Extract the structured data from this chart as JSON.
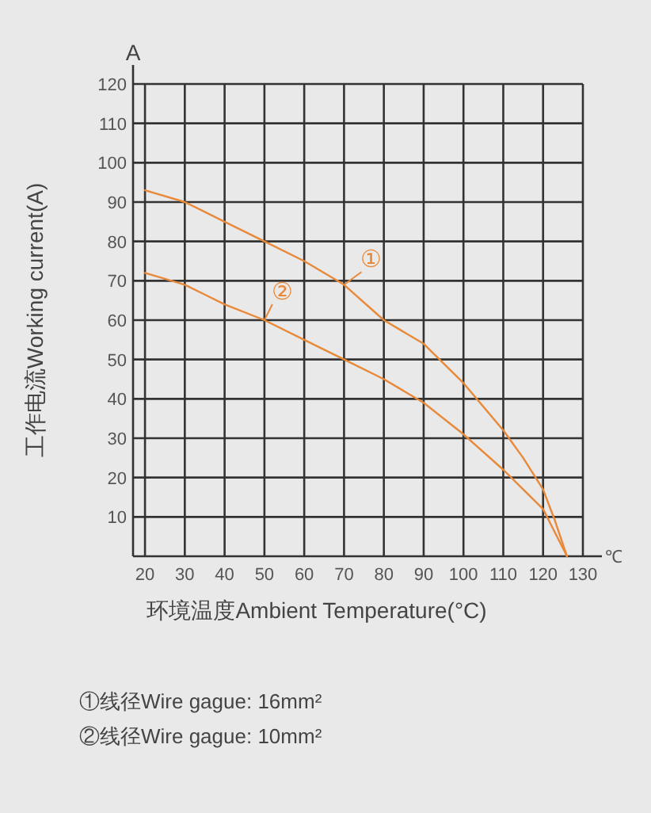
{
  "chart_data": {
    "type": "line",
    "xlabel": "环境温度Ambient Temperature(°C)",
    "ylabel": "工作电流Working current(A)",
    "xlim": [
      17,
      130
    ],
    "xticks": [
      20,
      30,
      40,
      50,
      60,
      70,
      80,
      90,
      100,
      110,
      120,
      130
    ],
    "ylim": [
      0,
      120
    ],
    "yticks": [
      10,
      20,
      30,
      40,
      50,
      60,
      70,
      80,
      90,
      100,
      110,
      120
    ],
    "grid": true,
    "marker": "none",
    "line_style": "solid",
    "series": [
      {
        "name": "①",
        "color": "#e8893a",
        "x": [
          20,
          30,
          40,
          50,
          60,
          70,
          80,
          90,
          100,
          110,
          115,
          120,
          123,
          125,
          126
        ],
        "values": [
          93,
          90,
          85,
          80,
          75,
          69,
          60,
          54,
          44,
          32,
          25,
          17,
          9,
          3,
          0
        ]
      },
      {
        "name": "②",
        "color": "#e8893a",
        "x": [
          20,
          30,
          40,
          50,
          60,
          70,
          80,
          90,
          100,
          110,
          115,
          120,
          123,
          125,
          126
        ],
        "values": [
          72,
          69,
          64,
          60,
          55,
          50,
          45,
          39,
          31,
          22,
          17,
          12,
          6,
          2,
          0
        ]
      }
    ],
    "annotations": [
      "A",
      "℃",
      "①线径Wire gague: 16mm²",
      "②线径Wire gague: 10mm²"
    ]
  }
}
